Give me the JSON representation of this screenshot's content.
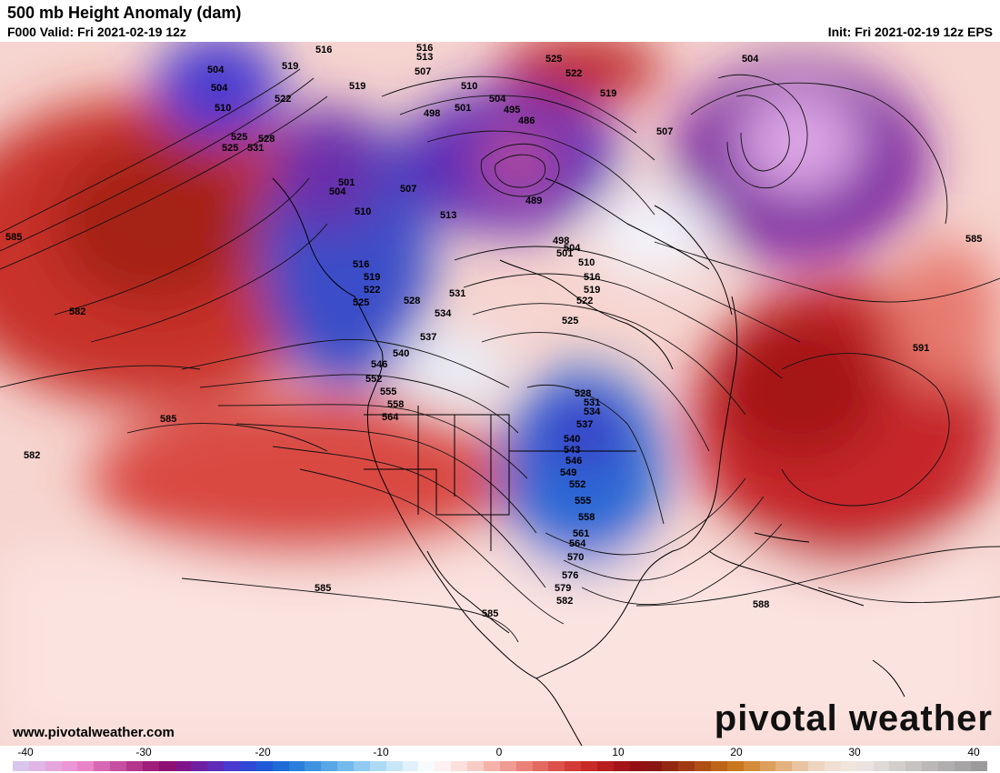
{
  "header": {
    "title": "500 mb Height Anomaly (dam)",
    "valid": "F000 Valid: Fri 2021-02-19 12z",
    "init": "Init: Fri 2021-02-19 12z EPS"
  },
  "footer": {
    "website": "www.pivotalweather.com",
    "logo_text": "pivotal weather"
  },
  "colorbar": {
    "ticks": [
      "-40",
      "-30",
      "-20",
      "-10",
      "0",
      "10",
      "20",
      "30",
      "40"
    ],
    "colors": [
      "#d9c6ee",
      "#dfb6e6",
      "#e5a6de",
      "#eb96d6",
      "#ea84c9",
      "#d868b4",
      "#c64ea0",
      "#b3358c",
      "#a01e7a",
      "#8e0f72",
      "#80138a",
      "#6f1fa2",
      "#5e2cb9",
      "#4a3ad0",
      "#3048d8",
      "#2158d8",
      "#1f6bd8",
      "#2a7fdc",
      "#3e93e0",
      "#58a6e6",
      "#74b9eb",
      "#90caf0",
      "#acd9f4",
      "#c7e6f8",
      "#e1f1fb",
      "#f7fbfd",
      "#fdf2f1",
      "#fbe0dd",
      "#f8cbc6",
      "#f4b2ab",
      "#ef9a92",
      "#ea8178",
      "#e36a61",
      "#dc524b",
      "#d33b36",
      "#c82a27",
      "#b81d1e",
      "#a51418",
      "#920f14",
      "#8a1512",
      "#932811",
      "#a13a12",
      "#b04e14",
      "#be6418",
      "#c8771f",
      "#d48c3a",
      "#dc9f5c",
      "#e3b27e",
      "#e9c4a0",
      "#eed5c0",
      "#f0dfd2",
      "#f0e4dc",
      "#ebe3df",
      "#e0dad7",
      "#d3cecc",
      "#c7c3c2",
      "#bbb8b7",
      "#b0aeae",
      "#a6a4a4",
      "#9c9a9a"
    ]
  },
  "contour_labels": [
    "516",
    "513",
    "519",
    "507",
    "510",
    "504",
    "501",
    "498",
    "495",
    "486",
    "489",
    "525",
    "522",
    "528",
    "531",
    "534",
    "537",
    "540",
    "543",
    "546",
    "549",
    "552",
    "555",
    "558",
    "561",
    "564",
    "570",
    "576",
    "579",
    "582",
    "585",
    "588",
    "591"
  ]
}
